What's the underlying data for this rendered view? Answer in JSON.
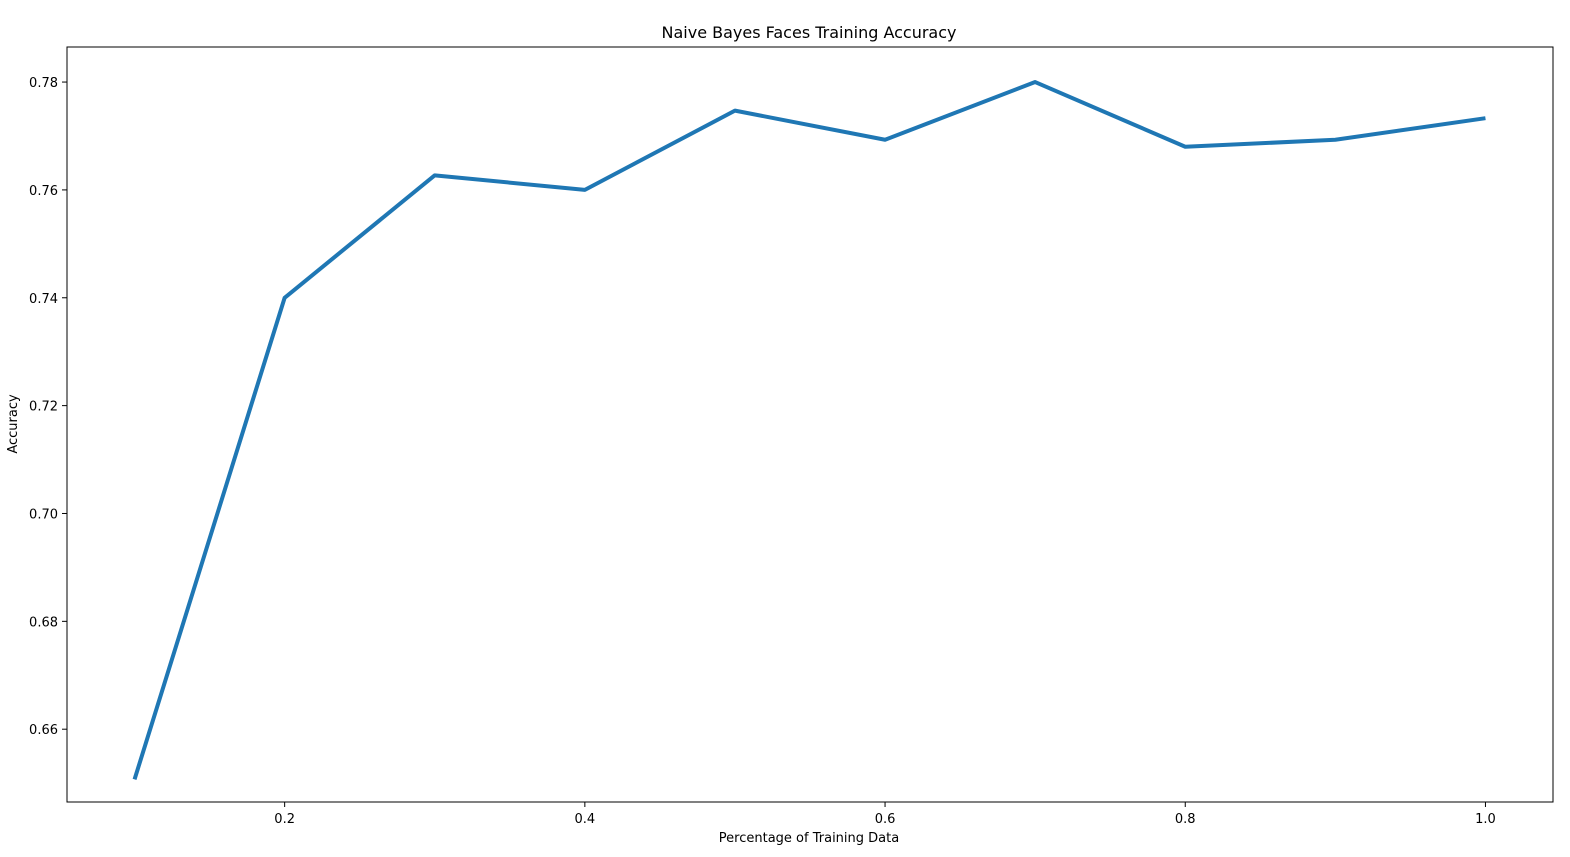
{
  "chart_data": {
    "type": "line",
    "title": "Naive Bayes Faces Training Accuracy",
    "xlabel": "Percentage of Training Data",
    "ylabel": "Accuracy",
    "xlim": [
      0.055,
      1.045
    ],
    "ylim": [
      0.6465,
      0.7865
    ],
    "xticks": [
      0.2,
      0.4,
      0.6,
      0.8,
      1.0
    ],
    "xtick_labels": [
      "0.2",
      "0.4",
      "0.6",
      "0.8",
      "1.0"
    ],
    "yticks": [
      0.66,
      0.68,
      0.7,
      0.72,
      0.74,
      0.76,
      0.78
    ],
    "ytick_labels": [
      "0.66",
      "0.68",
      "0.70",
      "0.72",
      "0.74",
      "0.76",
      "0.78"
    ],
    "grid": false,
    "series": [
      {
        "color": "#1f77b4",
        "x": [
          0.1,
          0.2,
          0.3,
          0.4,
          0.5,
          0.6,
          0.7,
          0.8,
          0.9,
          1.0
        ],
        "y": [
          0.6507,
          0.74,
          0.7627,
          0.76,
          0.7747,
          0.7693,
          0.78,
          0.768,
          0.7693,
          0.7733
        ]
      }
    ]
  }
}
